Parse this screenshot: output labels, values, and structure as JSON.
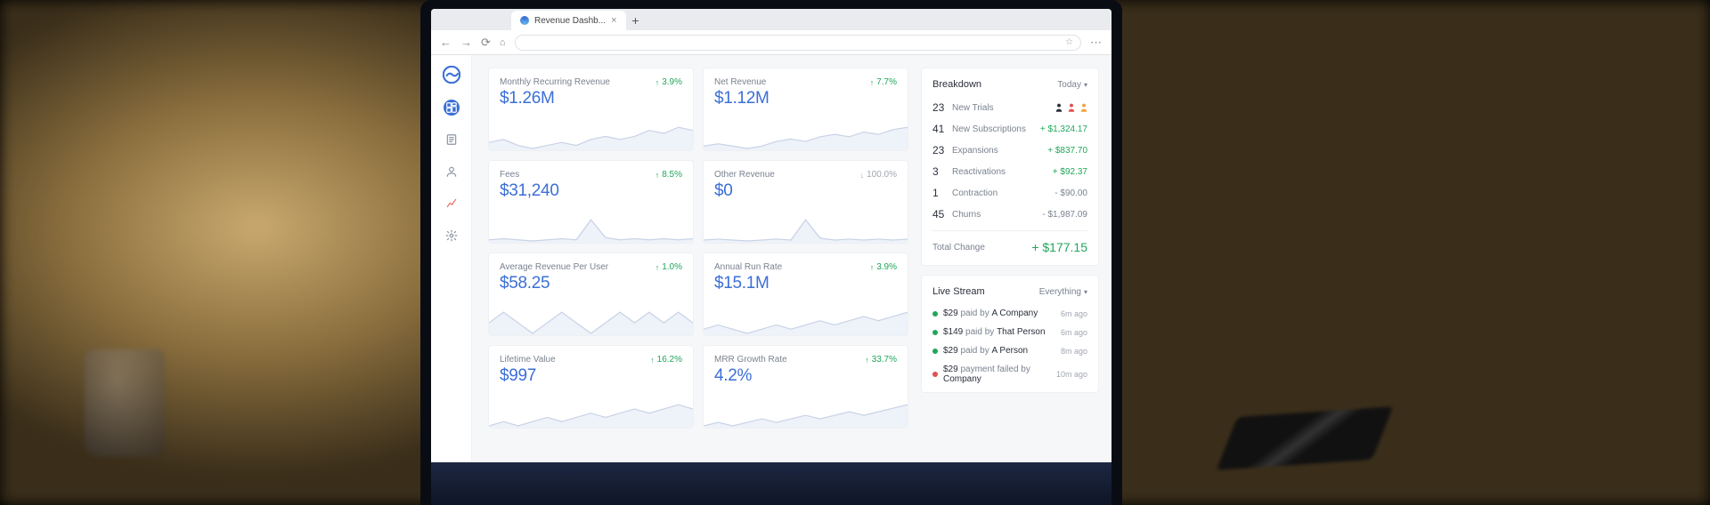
{
  "browser": {
    "tab_title": "Revenue Dashb...",
    "url_placeholder": " "
  },
  "sidebar": {
    "items": [
      {
        "name": "dashboard",
        "active": true,
        "color": "#ffffff"
      },
      {
        "name": "reports",
        "active": false,
        "color": "#8a93a3"
      },
      {
        "name": "customers",
        "active": false,
        "color": "#8a93a3"
      },
      {
        "name": "analytics",
        "active": false,
        "color": "#e86a5e"
      },
      {
        "name": "settings",
        "active": false,
        "color": "#8a93a3"
      }
    ]
  },
  "cards": [
    {
      "title": "Monthly Recurring Revenue",
      "value": "$1.26M",
      "change": "3.9%",
      "dir": "up",
      "spark": [
        18,
        19,
        17,
        16,
        17,
        18,
        17,
        19,
        20,
        19,
        20,
        22,
        21,
        23,
        22
      ]
    },
    {
      "title": "Net Revenue",
      "value": "$1.12M",
      "change": "7.7%",
      "dir": "up",
      "spark": [
        14,
        15,
        14,
        13,
        14,
        16,
        17,
        16,
        18,
        19,
        18,
        20,
        19,
        21,
        22
      ]
    },
    {
      "title": "Fees",
      "value": "$31,240",
      "change": "8.5%",
      "dir": "up",
      "spark": [
        10,
        11,
        10,
        9,
        10,
        11,
        10,
        28,
        12,
        10,
        11,
        10,
        11,
        10,
        11
      ]
    },
    {
      "title": "Other Revenue",
      "value": "$0",
      "change": "100.0%",
      "dir": "down",
      "spark": [
        8,
        9,
        8,
        7,
        8,
        9,
        8,
        30,
        10,
        8,
        9,
        8,
        9,
        8,
        9
      ]
    },
    {
      "title": "Average Revenue Per User",
      "value": "$58.25",
      "change": "1.0%",
      "dir": "up",
      "spark": [
        15,
        16,
        15,
        14,
        15,
        16,
        15,
        14,
        15,
        16,
        15,
        16,
        15,
        16,
        15
      ]
    },
    {
      "title": "Annual Run Rate",
      "value": "$15.1M",
      "change": "3.9%",
      "dir": "up",
      "spark": [
        16,
        17,
        16,
        15,
        16,
        17,
        16,
        17,
        18,
        17,
        18,
        19,
        18,
        19,
        20
      ]
    },
    {
      "title": "Lifetime Value",
      "value": "$997",
      "change": "16.2%",
      "dir": "up",
      "spark": [
        10,
        11,
        10,
        11,
        12,
        11,
        12,
        13,
        12,
        13,
        14,
        13,
        14,
        15,
        14
      ]
    },
    {
      "title": "MRR Growth Rate",
      "value": "4.2%",
      "change": "33.7%",
      "dir": "up",
      "spark": [
        8,
        9,
        8,
        9,
        10,
        9,
        10,
        11,
        10,
        11,
        12,
        11,
        12,
        13,
        14
      ]
    }
  ],
  "card_style": {
    "spark_stroke": "#c9d3e6",
    "spark_fill": "#eef2f9",
    "spark_height": 34,
    "value_color": "#3b6fd6",
    "up_color": "#20a65a",
    "down_color": "#a0a6b0"
  },
  "breakdown": {
    "title": "Breakdown",
    "period": "Today",
    "rows": [
      {
        "count": "23",
        "label": "New Trials",
        "value": "",
        "icons": [
          "#2a2f3a",
          "#e04f4f",
          "#f2a23a"
        ]
      },
      {
        "count": "41",
        "label": "New Subscriptions",
        "value": "+ $1,324.17",
        "sign": "pos"
      },
      {
        "count": "23",
        "label": "Expansions",
        "value": "+ $837.70",
        "sign": "pos"
      },
      {
        "count": "3",
        "label": "Reactivations",
        "value": "+ $92.37",
        "sign": "pos"
      },
      {
        "count": "1",
        "label": "Contraction",
        "value": "- $90.00",
        "sign": "neg"
      },
      {
        "count": "45",
        "label": "Churns",
        "value": "- $1,987.09",
        "sign": "neg"
      }
    ],
    "total_label": "Total Change",
    "total_value": "+ $177.15"
  },
  "livestream": {
    "title": "Live Stream",
    "filter": "Everything",
    "rows": [
      {
        "dot": "#20a65a",
        "amount": "$29",
        "verb": "paid by",
        "who": "A Company",
        "time": "6m ago"
      },
      {
        "dot": "#20a65a",
        "amount": "$149",
        "verb": "paid by",
        "who": "That Person",
        "time": "6m ago"
      },
      {
        "dot": "#20a65a",
        "amount": "$29",
        "verb": "paid by",
        "who": "A Person",
        "time": "8m ago"
      },
      {
        "dot": "#e04f4f",
        "amount": "$29",
        "verb": "payment failed by",
        "who": "Company",
        "time": "10m ago"
      }
    ]
  }
}
